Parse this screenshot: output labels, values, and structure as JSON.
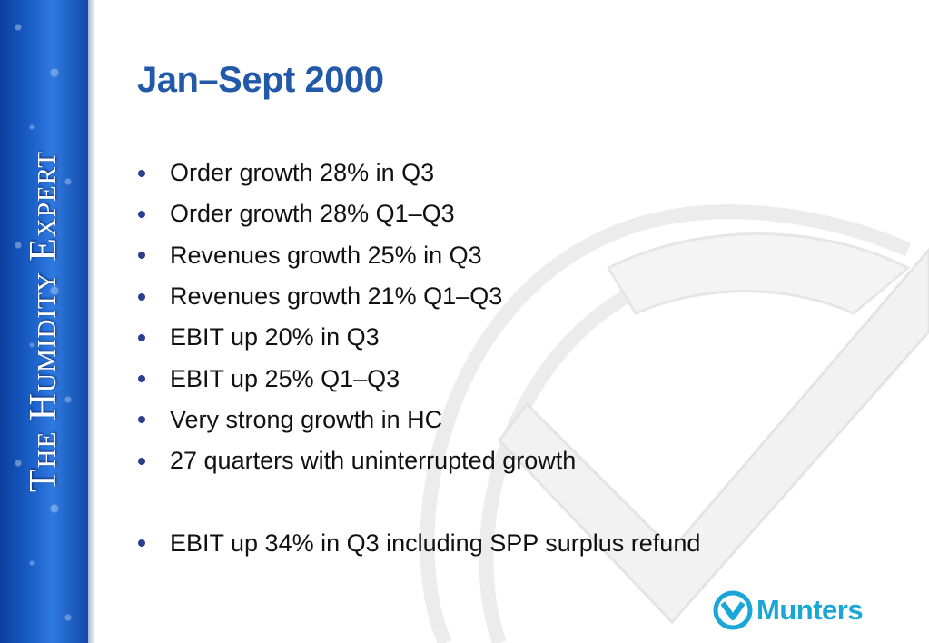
{
  "sidebar": {
    "tagline": "The Humidity Expert"
  },
  "slide": {
    "title": "Jan–Sept 2000",
    "bullets": [
      "Order growth 28% in Q3",
      "Order growth 28% Q1–Q3",
      "Revenues growth 25% in Q3",
      "Revenues growth 21% Q1–Q3",
      "EBIT up 20% in Q3",
      "EBIT up 25% Q1–Q3",
      "Very strong growth in HC",
      "27 quarters with uninterrupted growth"
    ],
    "extra_bullet": "EBIT up 34% in Q3 including SPP surplus refund"
  },
  "logo": {
    "name": "Munters",
    "color": "#1ba6d8"
  },
  "colors": {
    "title": "#2259a8",
    "sidebar": "#1a5fc8",
    "bullet_dot": "#2a3f8f"
  }
}
